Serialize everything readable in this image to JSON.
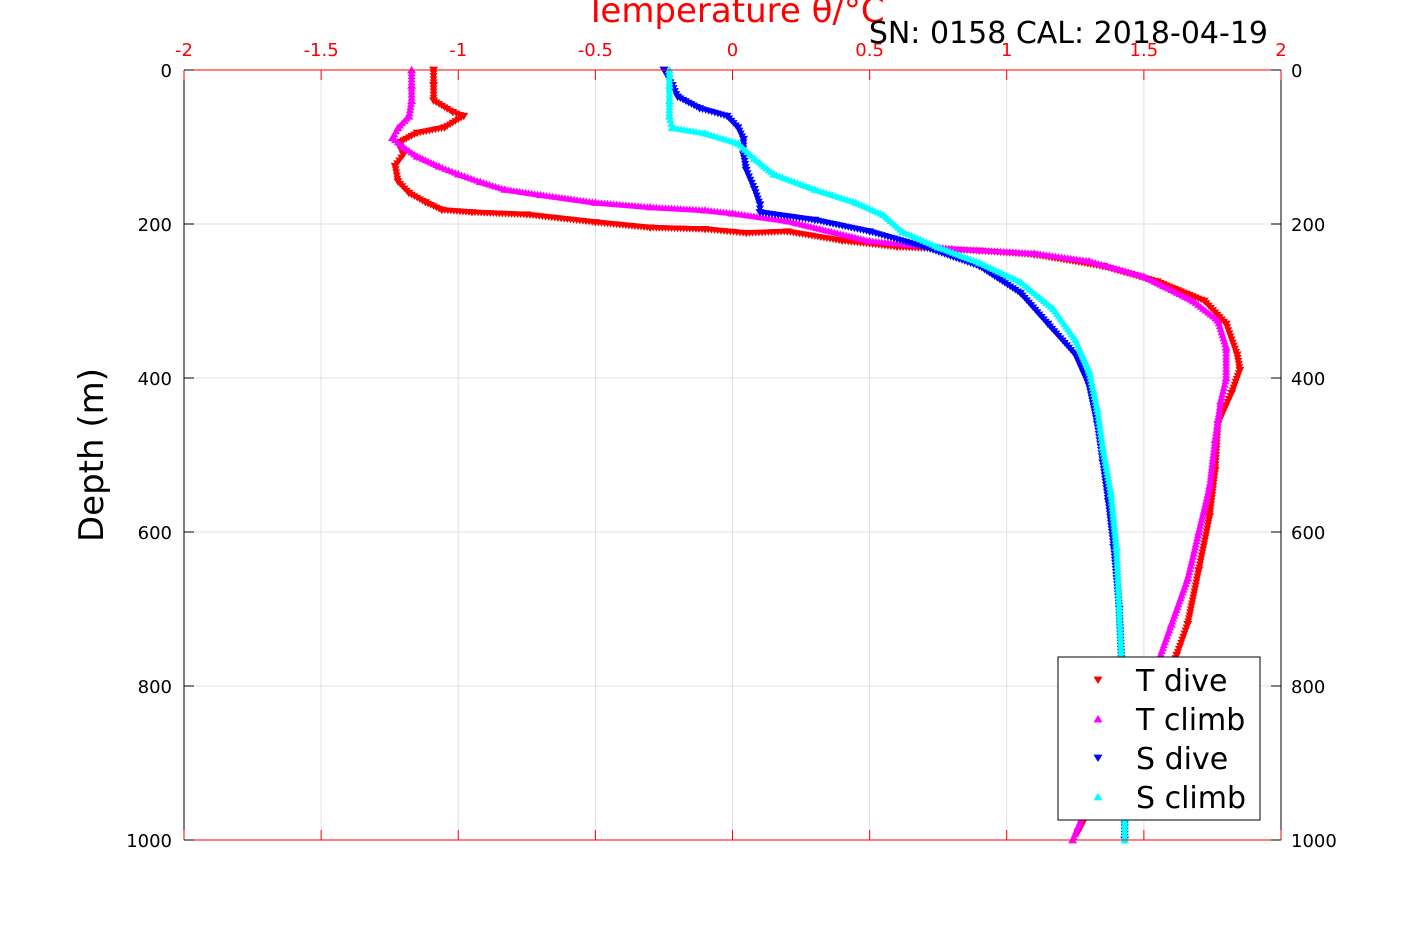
{
  "chart_data": {
    "type": "scatter",
    "title": "Temperature θ/°C",
    "subtitle": "SN: 0158  CAL: 2018-04-19",
    "xlabel": "Temperature θ/°C",
    "ylabel": "Depth (m)",
    "xlim": [
      -2,
      2
    ],
    "ylim": [
      0,
      1000
    ],
    "y_reversed": true,
    "x_axis_position": "top",
    "grid": true,
    "legend_position": "bottom-right",
    "x_ticks": [
      "-2",
      "-1.5",
      "-1",
      "-0.5",
      "0",
      "0.5",
      "1",
      "1.5",
      "2"
    ],
    "x_tick_values": [
      -2,
      -1.5,
      -1,
      -0.5,
      0,
      0.5,
      1,
      1.5,
      2
    ],
    "y_ticks": [
      "0",
      "200",
      "400",
      "600",
      "800",
      "1000"
    ],
    "y_tick_values": [
      0,
      200,
      400,
      600,
      800,
      1000
    ],
    "colors": {
      "axis_top": "#ff0000",
      "grid": "#e0e0e0",
      "axis": "#000000"
    },
    "series": [
      {
        "name": "T dive",
        "color": "#ff0000",
        "marker": "triangle-down",
        "points": [
          [
            -1.09,
            0
          ],
          [
            -1.09,
            20
          ],
          [
            -1.09,
            40
          ],
          [
            -1.02,
            55
          ],
          [
            -0.98,
            60
          ],
          [
            -1.05,
            75
          ],
          [
            -1.15,
            82
          ],
          [
            -1.22,
            95
          ],
          [
            -1.2,
            110
          ],
          [
            -1.23,
            125
          ],
          [
            -1.22,
            145
          ],
          [
            -1.18,
            160
          ],
          [
            -1.12,
            172
          ],
          [
            -1.06,
            182
          ],
          [
            -0.95,
            185
          ],
          [
            -0.75,
            188
          ],
          [
            -0.5,
            198
          ],
          [
            -0.3,
            205
          ],
          [
            -0.1,
            207
          ],
          [
            0.05,
            212
          ],
          [
            0.2,
            210
          ],
          [
            0.4,
            222
          ],
          [
            0.6,
            230
          ],
          [
            0.9,
            235
          ],
          [
            1.1,
            240
          ],
          [
            1.35,
            255
          ],
          [
            1.55,
            275
          ],
          [
            1.72,
            300
          ],
          [
            1.8,
            330
          ],
          [
            1.84,
            370
          ],
          [
            1.85,
            390
          ],
          [
            1.82,
            420
          ],
          [
            1.77,
            460
          ],
          [
            1.76,
            520
          ],
          [
            1.74,
            580
          ],
          [
            1.7,
            650
          ],
          [
            1.66,
            720
          ],
          [
            1.62,
            760
          ],
          [
            1.55,
            820
          ],
          [
            1.45,
            870
          ],
          [
            1.35,
            930
          ],
          [
            1.26,
            990
          ]
        ]
      },
      {
        "name": "T climb",
        "color": "#ff00ff",
        "marker": "triangle-up",
        "points": [
          [
            -1.17,
            0
          ],
          [
            -1.17,
            20
          ],
          [
            -1.17,
            40
          ],
          [
            -1.18,
            60
          ],
          [
            -1.22,
            75
          ],
          [
            -1.24,
            88
          ],
          [
            -1.2,
            100
          ],
          [
            -1.15,
            112
          ],
          [
            -1.07,
            125
          ],
          [
            -1.0,
            135
          ],
          [
            -0.92,
            145
          ],
          [
            -0.83,
            155
          ],
          [
            -0.7,
            162
          ],
          [
            -0.5,
            172
          ],
          [
            -0.3,
            178
          ],
          [
            -0.1,
            182
          ],
          [
            0.0,
            186
          ],
          [
            0.2,
            196
          ],
          [
            0.5,
            222
          ],
          [
            0.8,
            232
          ],
          [
            1.1,
            238
          ],
          [
            1.3,
            248
          ],
          [
            1.5,
            268
          ],
          [
            1.68,
            300
          ],
          [
            1.77,
            325
          ],
          [
            1.8,
            360
          ],
          [
            1.8,
            400
          ],
          [
            1.78,
            430
          ],
          [
            1.76,
            480
          ],
          [
            1.74,
            540
          ],
          [
            1.7,
            600
          ],
          [
            1.66,
            660
          ],
          [
            1.6,
            720
          ],
          [
            1.55,
            770
          ],
          [
            1.48,
            820
          ],
          [
            1.4,
            880
          ],
          [
            1.31,
            940
          ],
          [
            1.24,
            1000
          ]
        ]
      },
      {
        "name": "S dive",
        "color": "#0000ff",
        "marker": "triangle-down",
        "points": [
          [
            -0.25,
            0
          ],
          [
            -0.22,
            20
          ],
          [
            -0.2,
            35
          ],
          [
            -0.12,
            50
          ],
          [
            -0.02,
            60
          ],
          [
            0.02,
            75
          ],
          [
            0.04,
            90
          ],
          [
            0.04,
            110
          ],
          [
            0.05,
            130
          ],
          [
            0.08,
            155
          ],
          [
            0.1,
            175
          ],
          [
            0.1,
            185
          ],
          [
            0.3,
            195
          ],
          [
            0.5,
            210
          ],
          [
            0.7,
            230
          ],
          [
            0.9,
            255
          ],
          [
            1.05,
            290
          ],
          [
            1.15,
            330
          ],
          [
            1.25,
            370
          ],
          [
            1.3,
            410
          ],
          [
            1.33,
            460
          ],
          [
            1.35,
            510
          ],
          [
            1.37,
            560
          ],
          [
            1.39,
            620
          ],
          [
            1.41,
            700
          ],
          [
            1.42,
            780
          ],
          [
            1.43,
            860
          ],
          [
            1.43,
            940
          ],
          [
            1.43,
            1000
          ]
        ]
      },
      {
        "name": "S climb",
        "color": "#00ffff",
        "marker": "triangle-up",
        "points": [
          [
            -0.23,
            0
          ],
          [
            -0.23,
            20
          ],
          [
            -0.23,
            40
          ],
          [
            -0.23,
            60
          ],
          [
            -0.22,
            75
          ],
          [
            -0.1,
            82
          ],
          [
            0.02,
            95
          ],
          [
            0.08,
            115
          ],
          [
            0.15,
            135
          ],
          [
            0.3,
            155
          ],
          [
            0.45,
            172
          ],
          [
            0.55,
            188
          ],
          [
            0.62,
            210
          ],
          [
            0.75,
            230
          ],
          [
            0.9,
            250
          ],
          [
            1.05,
            275
          ],
          [
            1.17,
            310
          ],
          [
            1.25,
            350
          ],
          [
            1.3,
            390
          ],
          [
            1.33,
            440
          ],
          [
            1.35,
            490
          ],
          [
            1.38,
            550
          ],
          [
            1.4,
            620
          ],
          [
            1.41,
            700
          ],
          [
            1.42,
            780
          ],
          [
            1.43,
            860
          ],
          [
            1.43,
            940
          ],
          [
            1.43,
            1000
          ]
        ]
      }
    ]
  }
}
